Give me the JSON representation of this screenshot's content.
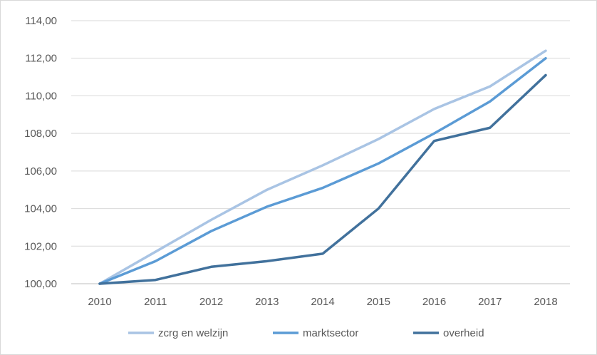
{
  "chart_data": {
    "type": "line",
    "title": "",
    "xlabel": "",
    "ylabel": "",
    "categories": [
      "2010",
      "2011",
      "2012",
      "2013",
      "2014",
      "2015",
      "2016",
      "2017",
      "2018"
    ],
    "ylim": [
      100,
      114
    ],
    "y_ticks": [
      100,
      102,
      104,
      106,
      108,
      110,
      112,
      114
    ],
    "y_tick_labels": [
      "100,00",
      "102,00",
      "104,00",
      "106,00",
      "108,00",
      "110,00",
      "112,00",
      "114,00"
    ],
    "grid": "horizontal",
    "legend_position": "bottom",
    "series": [
      {
        "name": "zcrg en welzijn",
        "color": "#a9c4e4",
        "values": [
          100.0,
          101.7,
          103.4,
          105.0,
          106.3,
          107.7,
          109.3,
          110.5,
          112.4
        ]
      },
      {
        "name": "marktsector",
        "color": "#5b9bd5",
        "values": [
          100.0,
          101.2,
          102.8,
          104.1,
          105.1,
          106.4,
          108.0,
          109.7,
          112.0
        ]
      },
      {
        "name": "overheid",
        "color": "#41719c",
        "values": [
          100.0,
          100.2,
          100.9,
          101.2,
          101.6,
          104.0,
          107.6,
          108.3,
          111.1
        ]
      }
    ]
  }
}
